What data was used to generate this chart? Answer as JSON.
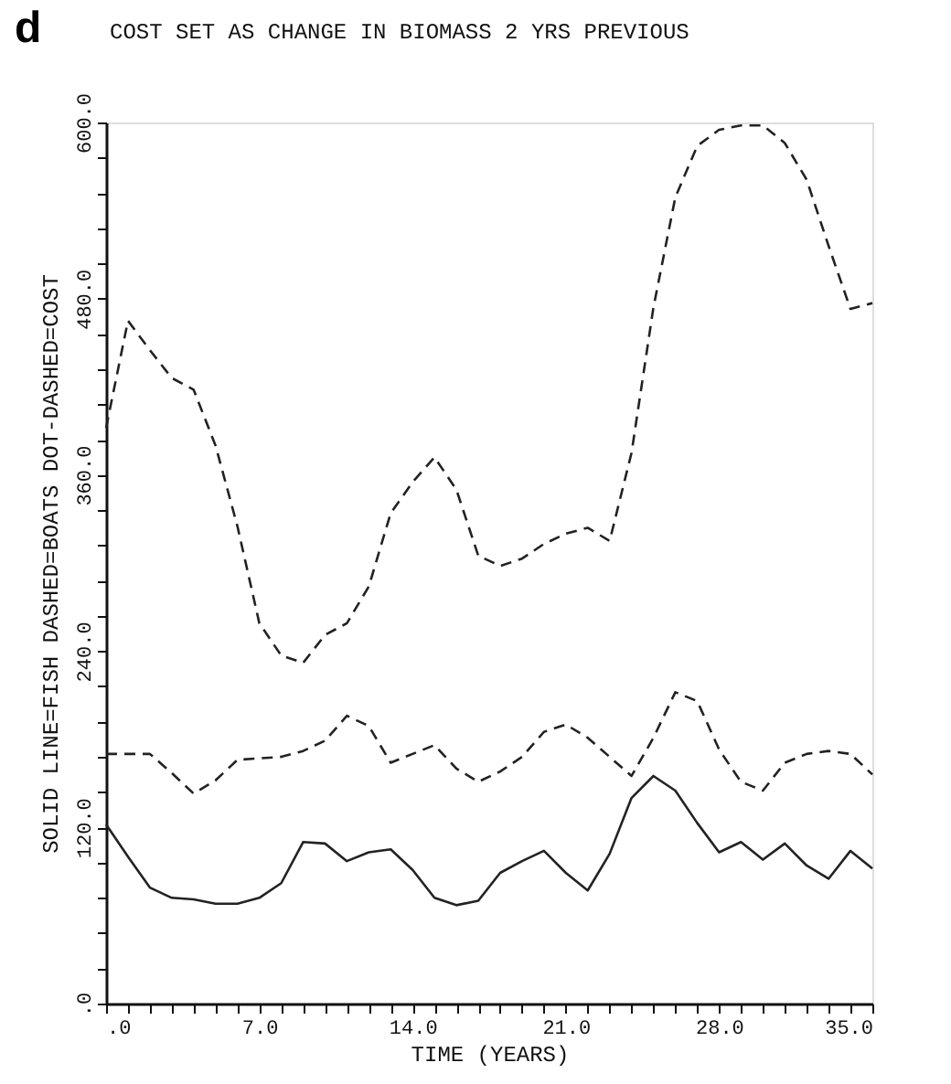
{
  "chart_data": {
    "type": "line",
    "title": "COST SET AS CHANGE IN BIOMASS 2 YRS PREVIOUS",
    "xlabel": "TIME (YEARS)",
    "ylabel": "SOLID LINE=FISH    DASHED=BOATS    DOT-DASHED=COST",
    "annotations": [
      "d"
    ],
    "x": [
      0,
      1,
      2,
      3,
      4,
      5,
      6,
      7,
      8,
      9,
      10,
      11,
      12,
      13,
      14,
      15,
      16,
      17,
      18,
      19,
      20,
      21,
      22,
      23,
      24,
      25,
      26,
      27,
      28,
      29,
      30,
      31,
      32,
      33,
      34,
      35
    ],
    "series": [
      {
        "color": "#222222",
        "line_style": "solid",
        "values": [
          122,
          100,
          79,
          72,
          71,
          68,
          68,
          72,
          82,
          110,
          109,
          97,
          103,
          105,
          91,
          72,
          67,
          70,
          89,
          97,
          104,
          89,
          77,
          102,
          140,
          155,
          145,
          123,
          103,
          110,
          98,
          109,
          94,
          85,
          104,
          92
        ]
      },
      {
        "color": "#222222",
        "line_style": "dashed",
        "values": [
          170,
          170,
          170,
          157,
          143,
          152,
          166,
          167,
          168,
          172,
          179,
          196,
          189,
          164,
          170,
          176,
          160,
          151,
          158,
          168,
          185,
          190,
          181,
          168,
          155,
          181,
          212,
          206,
          173,
          151,
          145,
          164,
          170,
          172,
          170,
          156
        ]
      },
      {
        "color": "#222222",
        "line_style": "dashed",
        "values": [
          392,
          465,
          445,
          426,
          418,
          380,
          325,
          259,
          237,
          232,
          251,
          259,
          284,
          334,
          355,
          372,
          350,
          305,
          298,
          303,
          313,
          320,
          324,
          315,
          375,
          474,
          549,
          584,
          595,
          598,
          598,
          586,
          561,
          516,
          473,
          477
        ]
      }
    ],
    "xlim": [
      0,
      35
    ],
    "ylim": [
      0,
      600
    ],
    "xticks": [
      {
        "value": 0,
        "label": ".0"
      },
      {
        "value": 1,
        "label": null
      },
      {
        "value": 2,
        "label": null
      },
      {
        "value": 3,
        "label": null
      },
      {
        "value": 4,
        "label": null
      },
      {
        "value": 5,
        "label": null
      },
      {
        "value": 6,
        "label": null
      },
      {
        "value": 7,
        "label": "7.0"
      },
      {
        "value": 8,
        "label": null
      },
      {
        "value": 9,
        "label": null
      },
      {
        "value": 10,
        "label": null
      },
      {
        "value": 11,
        "label": null
      },
      {
        "value": 12,
        "label": null
      },
      {
        "value": 13,
        "label": null
      },
      {
        "value": 14,
        "label": "14.0"
      },
      {
        "value": 15,
        "label": null
      },
      {
        "value": 16,
        "label": null
      },
      {
        "value": 17,
        "label": null
      },
      {
        "value": 18,
        "label": null
      },
      {
        "value": 19,
        "label": null
      },
      {
        "value": 20,
        "label": null
      },
      {
        "value": 21,
        "label": "21.0"
      },
      {
        "value": 22,
        "label": null
      },
      {
        "value": 23,
        "label": null
      },
      {
        "value": 24,
        "label": null
      },
      {
        "value": 25,
        "label": null
      },
      {
        "value": 26,
        "label": null
      },
      {
        "value": 27,
        "label": null
      },
      {
        "value": 28,
        "label": "28.0"
      },
      {
        "value": 29,
        "label": null
      },
      {
        "value": 30,
        "label": null
      },
      {
        "value": 31,
        "label": null
      },
      {
        "value": 32,
        "label": null
      },
      {
        "value": 33,
        "label": null
      },
      {
        "value": 34,
        "label": null
      },
      {
        "value": 35,
        "label": "35.0"
      }
    ],
    "yticks": [
      {
        "value": 0,
        "label": ".0"
      },
      {
        "value": 24,
        "label": null
      },
      {
        "value": 48,
        "label": null
      },
      {
        "value": 72,
        "label": null
      },
      {
        "value": 96,
        "label": null
      },
      {
        "value": 120,
        "label": "120.0"
      },
      {
        "value": 144,
        "label": null
      },
      {
        "value": 168,
        "label": null
      },
      {
        "value": 192,
        "label": null
      },
      {
        "value": 216,
        "label": null
      },
      {
        "value": 240,
        "label": "240.0"
      },
      {
        "value": 264,
        "label": null
      },
      {
        "value": 288,
        "label": null
      },
      {
        "value": 312,
        "label": null
      },
      {
        "value": 336,
        "label": null
      },
      {
        "value": 360,
        "label": "360.0"
      },
      {
        "value": 384,
        "label": null
      },
      {
        "value": 408,
        "label": null
      },
      {
        "value": 432,
        "label": null
      },
      {
        "value": 456,
        "label": null
      },
      {
        "value": 480,
        "label": "480.0"
      },
      {
        "value": 504,
        "label": null
      },
      {
        "value": 528,
        "label": null
      },
      {
        "value": 552,
        "label": null
      },
      {
        "value": 576,
        "label": null
      },
      {
        "value": 600,
        "label": "600.0"
      }
    ],
    "grid": false
  }
}
